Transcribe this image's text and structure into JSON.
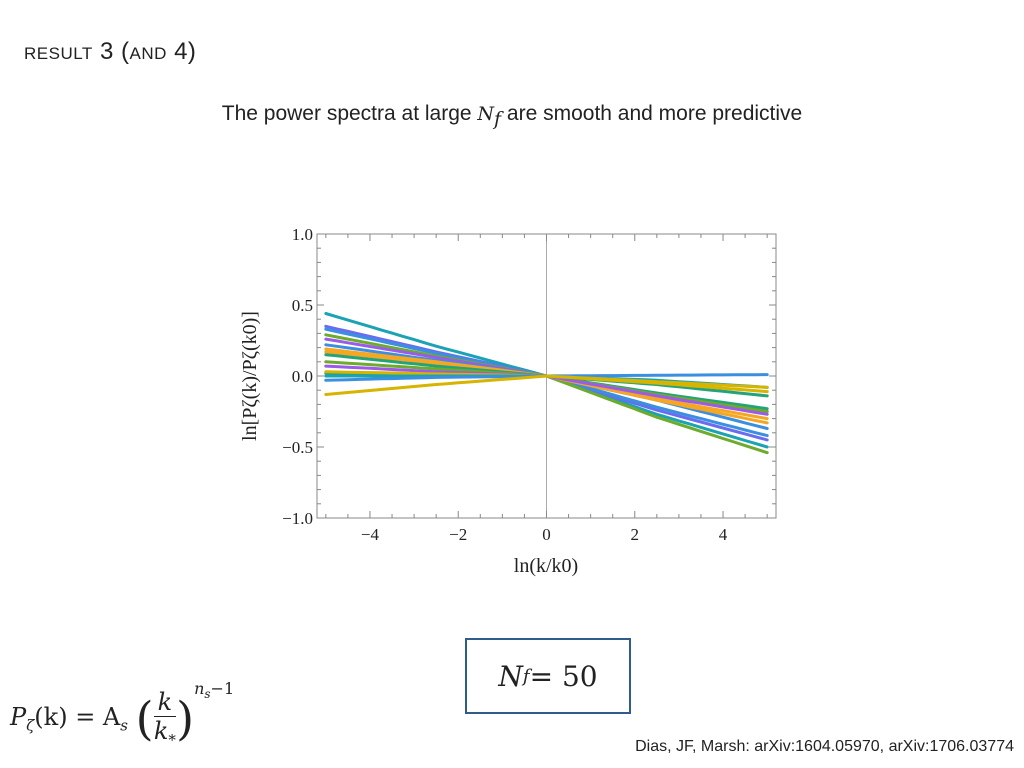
{
  "slide": {
    "title_a": "Result",
    "title_b": " 3 (",
    "title_c": "and",
    "title_d": " 4)",
    "subtitle_pre": "The power spectra at large ",
    "subtitle_var": "N",
    "subtitle_sub": "f",
    "subtitle_post": " are smooth and more predictive",
    "box_var": "N",
    "box_sub": "f",
    "box_rest": " = 50",
    "formula_lhs": "P",
    "formula_lhs_sub": "ζ",
    "formula_lhs_arg": "(k) = A",
    "formula_As_sub": "s",
    "formula_num": "k",
    "formula_den": "k",
    "formula_den_sub": "*",
    "formula_exp": "n",
    "formula_exp_sub": "s",
    "formula_exp_rest": "−1",
    "citation": "Dias, JF, Marsh: arXiv:1604.05970, arXiv:1706.03774"
  },
  "chart_data": {
    "type": "line",
    "title": "",
    "xlabel": "ln(k/k0)",
    "ylabel": "ln[Pζ(k)/Pζ(k0)]",
    "xlim": [
      -5.2,
      5.2
    ],
    "ylim": [
      -1.0,
      1.0
    ],
    "xticks": [
      -4,
      -2,
      0,
      2,
      4
    ],
    "xtick_labels": [
      "−4",
      "−2",
      "0",
      "2",
      "4"
    ],
    "yticks": [
      -1.0,
      -0.5,
      0.0,
      0.5,
      1.0
    ],
    "ytick_labels": [
      "−1.0",
      "−0.5",
      "0.0",
      "0.5",
      "1.0"
    ],
    "x": [
      -5,
      -2.5,
      0,
      2.5,
      5
    ],
    "series": [
      {
        "name": "s1",
        "color": "#1aa3b3",
        "values": [
          0.44,
          0.21,
          0,
          -0.27,
          -0.5
        ]
      },
      {
        "name": "s2",
        "color": "#6a6cf0",
        "values": [
          0.35,
          0.17,
          0,
          -0.24,
          -0.45
        ]
      },
      {
        "name": "s3",
        "color": "#3a8fe0",
        "values": [
          0.33,
          0.16,
          0,
          -0.22,
          -0.42
        ]
      },
      {
        "name": "s4",
        "color": "#6dab2c",
        "values": [
          0.29,
          0.14,
          0,
          -0.29,
          -0.54
        ]
      },
      {
        "name": "s5",
        "color": "#9b5be8",
        "values": [
          0.26,
          0.13,
          0,
          -0.15,
          -0.25
        ]
      },
      {
        "name": "s6",
        "color": "#3a8fe0",
        "values": [
          0.22,
          0.11,
          0,
          -0.17,
          -0.37
        ]
      },
      {
        "name": "s7",
        "color": "#f5a623",
        "values": [
          0.19,
          0.1,
          0,
          -0.17,
          -0.33
        ]
      },
      {
        "name": "s8",
        "color": "#f5a623",
        "values": [
          0.17,
          0.09,
          0,
          -0.16,
          -0.3
        ]
      },
      {
        "name": "s9",
        "color": "#22a37a",
        "values": [
          0.15,
          0.07,
          0,
          -0.12,
          -0.23
        ]
      },
      {
        "name": "s10",
        "color": "#6dab2c",
        "values": [
          0.1,
          0.05,
          0,
          -0.13,
          -0.25
        ]
      },
      {
        "name": "s11",
        "color": "#9b5be8",
        "values": [
          0.07,
          0.03,
          0,
          -0.14,
          -0.27
        ]
      },
      {
        "name": "s12",
        "color": "#22a37a",
        "values": [
          0.02,
          0.01,
          0,
          -0.06,
          -0.14
        ]
      },
      {
        "name": "s13",
        "color": "#d6b400",
        "values": [
          0.03,
          0.015,
          0,
          -0.05,
          -0.11
        ]
      },
      {
        "name": "s14",
        "color": "#1aa3b3",
        "values": [
          0.0,
          0.0,
          0,
          -0.03,
          -0.08
        ]
      },
      {
        "name": "s15",
        "color": "#3a8fe0",
        "values": [
          -0.03,
          -0.01,
          0,
          0.005,
          0.01
        ]
      },
      {
        "name": "s16",
        "color": "#d6b400",
        "values": [
          -0.13,
          -0.06,
          0,
          -0.04,
          -0.08
        ]
      }
    ]
  }
}
